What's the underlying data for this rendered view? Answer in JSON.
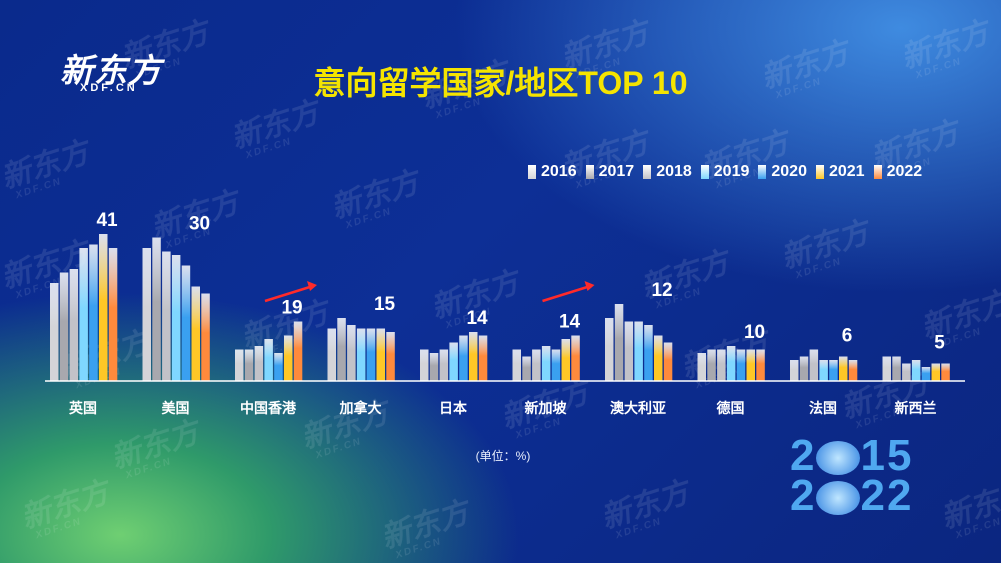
{
  "brand": {
    "logo_text": "新东方",
    "logo_sub": "XDF.CN"
  },
  "watermark_text": "新东方",
  "watermark_sub": "XDF.CN",
  "chart_data": {
    "type": "bar",
    "title": "意向留学国家/地区TOP 10",
    "unit_note": "(单位：%)",
    "categories": [
      "英国",
      "美国",
      "中国香港",
      "加拿大",
      "日本",
      "新加坡",
      "澳大利亚",
      "德国",
      "法国",
      "新西兰"
    ],
    "series": [
      {
        "name": "2016",
        "color": "#d4d4d8",
        "values": [
          28,
          38,
          9,
          15,
          9,
          9,
          18,
          8,
          6,
          7
        ]
      },
      {
        "name": "2017",
        "color": "#a8a8ae",
        "values": [
          31,
          41,
          9,
          18,
          8,
          7,
          22,
          9,
          7,
          7
        ]
      },
      {
        "name": "2018",
        "color": "#c2c2c8",
        "values": [
          32,
          37,
          10,
          16,
          9,
          9,
          17,
          9,
          9,
          5
        ]
      },
      {
        "name": "2019",
        "color": "#7fd7ff",
        "values": [
          38,
          36,
          12,
          15,
          11,
          10,
          17,
          10,
          6,
          6
        ]
      },
      {
        "name": "2020",
        "color": "#3aa0f0",
        "values": [
          39,
          33,
          8,
          15,
          13,
          9,
          16,
          9,
          6,
          4
        ]
      },
      {
        "name": "2021",
        "color": "#ffc726",
        "values": [
          42,
          27,
          13,
          15,
          14,
          12,
          13,
          9,
          7,
          5
        ]
      },
      {
        "name": "2022",
        "color": "#ff8a3c",
        "values": [
          38,
          25,
          17,
          14,
          13,
          13,
          11,
          9,
          6,
          5
        ]
      }
    ],
    "value_labels": [
      41,
      30,
      19,
      15,
      14,
      14,
      12,
      10,
      6,
      5
    ],
    "trend_arrows": [
      "中国香港",
      "新加坡"
    ],
    "ylim": [
      0,
      45
    ],
    "legend_position": "top-right"
  },
  "badge": {
    "line1_a": "2",
    "line1_b": "15",
    "line2_a": "2",
    "line2_b": "22"
  }
}
